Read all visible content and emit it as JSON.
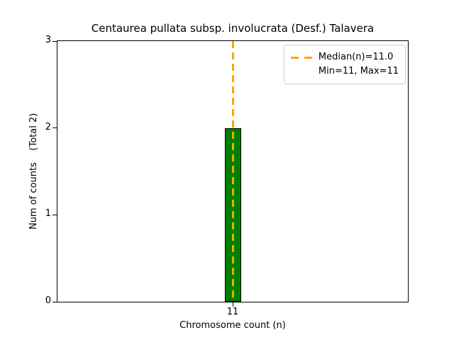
{
  "figure": {
    "background": "#ffffff",
    "frame_color": "#000000"
  },
  "chart_data": {
    "type": "bar",
    "title": "Centaurea pullata subsp. involucrata (Desf.) Talavera",
    "xlabel": "Chromosome count (n)",
    "ylabel": "Num of counts    (Total 2)",
    "categories": [
      "11"
    ],
    "values": [
      2
    ],
    "ylim": [
      0,
      3
    ],
    "yticks": [
      0,
      1,
      2,
      3
    ],
    "grid": false,
    "bar_color": "#008000",
    "bar_edge_color": "#000000",
    "median_line": {
      "x": "11",
      "value": 11.0,
      "color": "#FFA500",
      "style": "dashed"
    },
    "legend": {
      "position": "upper right",
      "entries": [
        {
          "marker": "dashed-line",
          "color": "#FFA500",
          "label": "Median(n)=11.0"
        },
        {
          "marker": "none",
          "color": "",
          "label": "Min=11, Max=11"
        }
      ]
    }
  }
}
